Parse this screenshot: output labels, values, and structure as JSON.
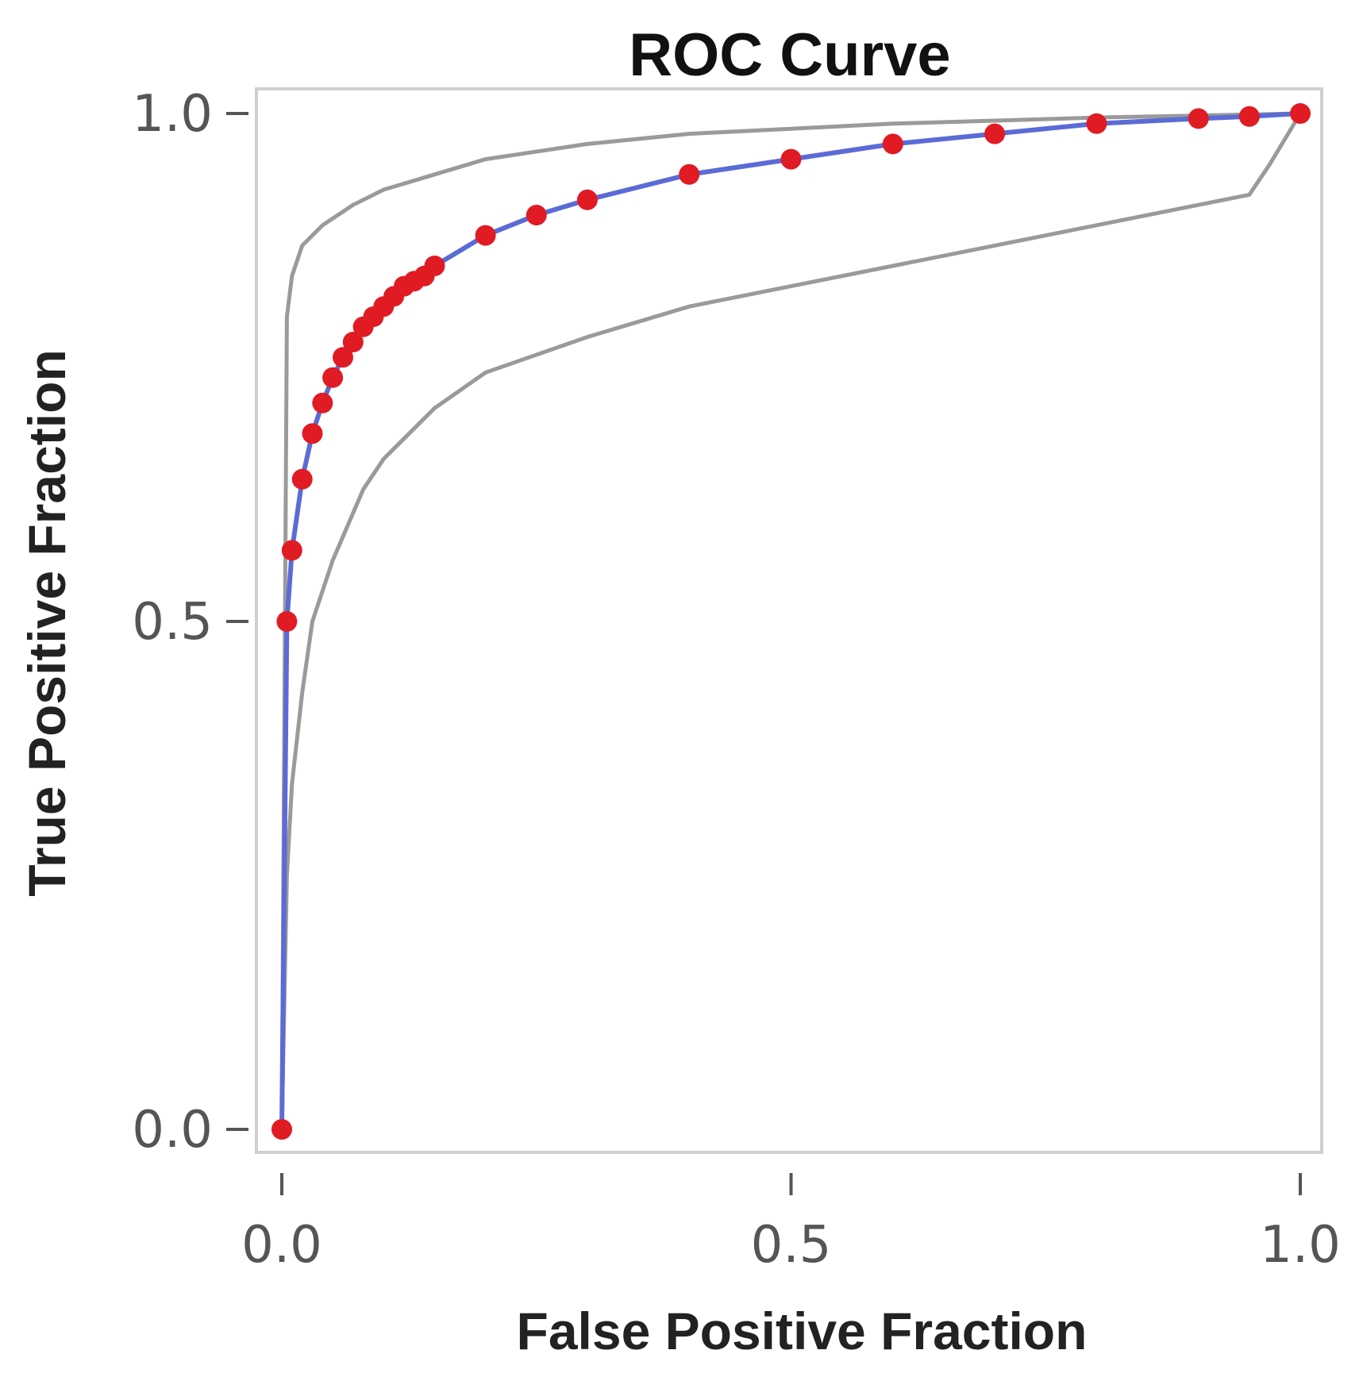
{
  "chart_data": {
    "type": "line",
    "title": "ROC Curve",
    "xlabel": "False Positive Fraction",
    "ylabel": "True Positive Fraction",
    "xlim": [
      0.0,
      1.0
    ],
    "ylim": [
      0.0,
      1.0
    ],
    "x_ticks": [
      "0.0",
      "0.5",
      "1.0"
    ],
    "y_ticks": [
      "0.0",
      "0.5",
      "1.0"
    ],
    "grid": false,
    "legend": "none",
    "colors": {
      "curve": "#5b6bd6",
      "points": "#e01b24",
      "confidence_band": "#9a9a9a",
      "frame": "#cfcfcf"
    },
    "series": [
      {
        "style": "line+markers",
        "x": [
          0.0,
          0.005,
          0.01,
          0.02,
          0.03,
          0.04,
          0.05,
          0.06,
          0.07,
          0.08,
          0.09,
          0.1,
          0.11,
          0.12,
          0.13,
          0.14,
          0.15,
          0.2,
          0.25,
          0.3,
          0.4,
          0.5,
          0.6,
          0.7,
          0.8,
          0.9,
          0.95,
          1.0
        ],
        "y": [
          0.0,
          0.5,
          0.57,
          0.64,
          0.685,
          0.715,
          0.74,
          0.76,
          0.775,
          0.79,
          0.8,
          0.81,
          0.82,
          0.83,
          0.835,
          0.84,
          0.85,
          0.88,
          0.9,
          0.915,
          0.94,
          0.955,
          0.97,
          0.98,
          0.99,
          0.995,
          0.997,
          1.0
        ]
      },
      {
        "style": "line",
        "x": [
          0.0,
          0.005,
          0.01,
          0.02,
          0.04,
          0.07,
          0.1,
          0.15,
          0.2,
          0.3,
          0.4,
          0.5,
          0.6,
          0.7,
          0.8,
          0.9,
          1.0
        ],
        "y": [
          0.0,
          0.8,
          0.84,
          0.87,
          0.89,
          0.91,
          0.925,
          0.94,
          0.955,
          0.97,
          0.98,
          0.985,
          0.99,
          0.993,
          0.996,
          0.998,
          1.0
        ]
      },
      {
        "style": "line",
        "x": [
          0.0,
          0.005,
          0.01,
          0.02,
          0.03,
          0.05,
          0.08,
          0.1,
          0.15,
          0.2,
          0.3,
          0.4,
          0.5,
          0.6,
          0.7,
          0.8,
          0.9,
          0.95,
          0.97,
          1.0
        ],
        "y": [
          0.0,
          0.25,
          0.34,
          0.43,
          0.5,
          0.56,
          0.63,
          0.66,
          0.71,
          0.745,
          0.78,
          0.81,
          0.83,
          0.85,
          0.87,
          0.89,
          0.91,
          0.92,
          0.95,
          1.0
        ]
      }
    ]
  }
}
